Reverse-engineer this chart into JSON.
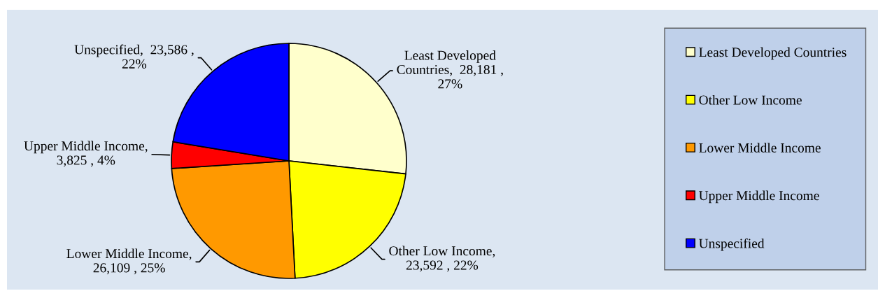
{
  "chart_data": {
    "type": "pie",
    "categories": [
      "Least Developed Countries",
      "Other Low Income",
      "Lower Middle Income",
      "Upper Middle Income",
      "Unspecified"
    ],
    "values": [
      28181,
      23592,
      26109,
      3825,
      23586
    ],
    "colors": [
      "#ffffcc",
      "#ffff00",
      "#ff9900",
      "#ff0000",
      "#0000ff"
    ],
    "value_labels": [
      "Least Developed\nCountries,  28,181 ,\n27%",
      "Other Low Income,\n23,592 , 22%",
      "Lower Middle Income,\n26,109 , 25%",
      "Upper Middle Income,\n3,825 , 4%",
      "Unspecified,  23,586 ,\n22%"
    ],
    "legend": "right"
  }
}
